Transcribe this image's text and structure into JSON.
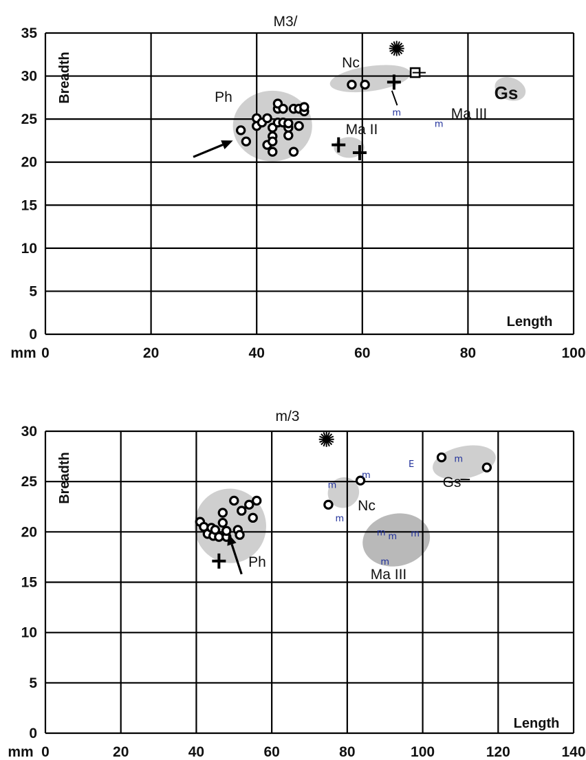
{
  "chart_data": [
    {
      "type": "scatter",
      "title": "M3/",
      "ylabel": "Breadth",
      "xlabel": "Length",
      "unit": "mm",
      "xlim": [
        0,
        100
      ],
      "ylim": [
        0,
        35
      ],
      "xticks": [
        "0",
        "20",
        "40",
        "60",
        "80",
        "100"
      ],
      "yticks": [
        "0",
        "5",
        "10",
        "15",
        "20",
        "25",
        "30",
        "35"
      ],
      "grid": true,
      "groups": [
        {
          "name": "Ph",
          "marker": "circle",
          "points": [
            [
              37,
              23.7
            ],
            [
              38,
              22.4
            ],
            [
              40,
              25.1
            ],
            [
              40,
              24.2
            ],
            [
              41,
              24.6
            ],
            [
              42,
              25.1
            ],
            [
              42,
              22
            ],
            [
              43,
              23
            ],
            [
              43,
              24
            ],
            [
              43,
              21.2
            ],
            [
              43,
              22.4
            ],
            [
              44,
              24.6
            ],
            [
              44,
              26.2
            ],
            [
              44,
              26.8
            ],
            [
              45,
              24.6
            ],
            [
              45,
              26.2
            ],
            [
              46,
              24
            ],
            [
              46,
              23.1
            ],
            [
              46,
              24.5
            ],
            [
              47,
              26.2
            ],
            [
              47,
              21.2
            ],
            [
              48,
              26.2
            ],
            [
              48,
              24.2
            ],
            [
              49,
              25.9
            ],
            [
              49,
              26.4
            ]
          ]
        },
        {
          "name": "Nc",
          "marker": "circle",
          "points": [
            [
              58,
              29
            ],
            [
              60.5,
              29
            ]
          ]
        },
        {
          "name": "Nc",
          "marker": "cross",
          "points": [
            [
              66,
              29.3
            ]
          ]
        },
        {
          "name": "Nc",
          "marker": "square",
          "points": [
            [
              70,
              30.4
            ]
          ]
        },
        {
          "name": "Ma II",
          "marker": "cross",
          "points": [
            [
              55.5,
              22
            ],
            [
              59.5,
              21.1
            ]
          ]
        },
        {
          "name": "star",
          "marker": "star",
          "points": [
            [
              66.5,
              33.2
            ]
          ]
        },
        {
          "name": "m",
          "marker": "m",
          "points": [
            [
              66.5,
              25.8
            ],
            [
              74.5,
              24.5
            ]
          ]
        }
      ],
      "labels": [
        "Ph",
        "Nc",
        "Ma II",
        "Ma III",
        "Gs"
      ],
      "arrow_annotation": {
        "from": [
          28,
          20.6
        ],
        "to": [
          35.5,
          22.5
        ]
      }
    },
    {
      "type": "scatter",
      "title": "m/3",
      "ylabel": "Breadth",
      "xlabel": "Length",
      "unit": "mm",
      "xlim": [
        0,
        140
      ],
      "ylim": [
        0,
        30
      ],
      "xticks": [
        "0",
        "20",
        "40",
        "60",
        "80",
        "100",
        "120",
        "140"
      ],
      "yticks": [
        "0",
        "5",
        "10",
        "15",
        "20",
        "25",
        "30"
      ],
      "grid": true,
      "groups": [
        {
          "name": "Ph",
          "marker": "circle",
          "points": [
            [
              41,
              21
            ],
            [
              42,
              20.5
            ],
            [
              43,
              19.8
            ],
            [
              44,
              20.4
            ],
            [
              44.5,
              19.6
            ],
            [
              45,
              20.2
            ],
            [
              46,
              19.5
            ],
            [
              47,
              20.9
            ],
            [
              47,
              21.9
            ],
            [
              48,
              19.5
            ],
            [
              48,
              20.1
            ],
            [
              50,
              23.1
            ],
            [
              51,
              20.2
            ],
            [
              51.5,
              19.7
            ],
            [
              52,
              22.1
            ],
            [
              54,
              22.7
            ],
            [
              55,
              21.4
            ],
            [
              56,
              23.1
            ]
          ]
        },
        {
          "name": "Ph",
          "marker": "cross",
          "points": [
            [
              46,
              17.1
            ]
          ]
        },
        {
          "name": "Nc",
          "marker": "circle",
          "points": [
            [
              75,
              22.7
            ],
            [
              83.5,
              25.1
            ]
          ]
        },
        {
          "name": "Gs",
          "marker": "circle",
          "points": [
            [
              105,
              27.4
            ],
            [
              117,
              26.4
            ]
          ]
        },
        {
          "name": "star",
          "marker": "star",
          "points": [
            [
              74.5,
              29.2
            ]
          ]
        },
        {
          "name": "m",
          "marker": "m",
          "points": [
            [
              76,
              24.7
            ],
            [
              78,
              21.4
            ],
            [
              85,
              25.7
            ],
            [
              89,
              20
            ],
            [
              92,
              19.6
            ],
            [
              98,
              19.9
            ],
            [
              90,
              17.1
            ],
            [
              109.5,
              27.3
            ]
          ]
        },
        {
          "name": "E",
          "marker": "E",
          "points": [
            [
              97,
              26.8
            ]
          ]
        }
      ],
      "labels": [
        "Ph",
        "Nc",
        "Ma III",
        "Gs"
      ],
      "arrow_annotation": {
        "from": [
          52,
          15.8
        ],
        "to": [
          48.5,
          19.8
        ]
      }
    }
  ]
}
